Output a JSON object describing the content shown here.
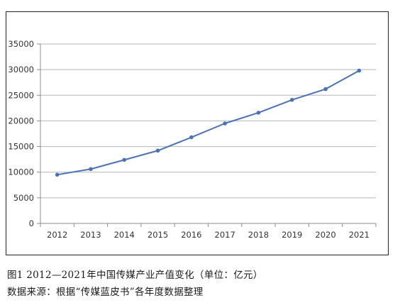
{
  "chart_data": {
    "type": "line",
    "title": "",
    "xlabel": "",
    "ylabel": "",
    "categories": [
      "2012",
      "2013",
      "2014",
      "2015",
      "2016",
      "2017",
      "2018",
      "2019",
      "2020",
      "2021"
    ],
    "series": [
      {
        "values": [
          9500,
          10600,
          12400,
          14200,
          16800,
          19500,
          21600,
          24100,
          26200,
          29800
        ]
      }
    ],
    "ylim": [
      0,
      35000
    ],
    "yticks": [
      "0",
      "5000",
      "10000",
      "15000",
      "20000",
      "25000",
      "30000",
      "35000"
    ],
    "grid": true,
    "legend": "none",
    "line_color": "#4a72b8",
    "grid_color": "#b5b5b5",
    "axis_color": "#8c8c8c"
  },
  "caption": {
    "figure_title": "图1 2012—2021年中国传媒产业产值变化（单位：亿元）",
    "source": "数据来源：根据“传媒蓝皮书”各年度数据整理"
  }
}
